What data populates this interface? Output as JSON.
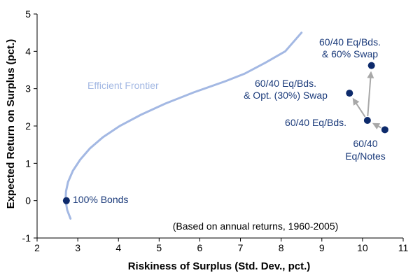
{
  "chart_data": {
    "type": "scatter",
    "xlabel": "Riskiness of Surplus (Std. Dev., pct.)",
    "ylabel": "Expected Return on Surplus (pct.)",
    "xlim": [
      2,
      11
    ],
    "ylim": [
      -1,
      5
    ],
    "xticks": [
      "2",
      "3",
      "4",
      "5",
      "6",
      "7",
      "8",
      "9",
      "10",
      "11"
    ],
    "yticks": [
      "-1",
      "0",
      "1",
      "2",
      "3",
      "4",
      "5"
    ],
    "grid": false,
    "frontier": {
      "label": "Efficient Frontier",
      "color": "#a3b8e3",
      "points": [
        [
          2.82,
          -0.48
        ],
        [
          2.74,
          -0.25
        ],
        [
          2.7,
          0.0
        ],
        [
          2.71,
          0.25
        ],
        [
          2.76,
          0.5
        ],
        [
          2.88,
          0.8
        ],
        [
          3.06,
          1.1
        ],
        [
          3.3,
          1.4
        ],
        [
          3.62,
          1.7
        ],
        [
          4.03,
          2.0
        ],
        [
          4.55,
          2.3
        ],
        [
          5.15,
          2.6
        ],
        [
          5.85,
          2.9
        ],
        [
          6.63,
          3.2
        ],
        [
          7.1,
          3.4
        ],
        [
          7.62,
          3.7
        ],
        [
          8.1,
          4.0
        ],
        [
          8.5,
          4.5
        ]
      ]
    },
    "points": [
      {
        "label": "100% Bonds",
        "x": 2.72,
        "y": 0.0
      },
      {
        "label": "60/40 Eq/Notes",
        "x": 10.55,
        "y": 1.9
      },
      {
        "label": "60/40 Eq/Bds.",
        "x": 10.12,
        "y": 2.15
      },
      {
        "label": "60/40 Eq/Bds. & Opt. (30%) Swap",
        "x": 9.68,
        "y": 2.88
      },
      {
        "label": "60/40 Eq/Bds. & 60% Swap",
        "x": 10.22,
        "y": 3.62
      }
    ],
    "arrows": [
      {
        "from": "60/40 Eq/Notes",
        "to": "60/40 Eq/Bds."
      },
      {
        "from": "60/40 Eq/Bds.",
        "to": "60/40 Eq/Bds. & Opt. (30%) Swap"
      },
      {
        "from": "60/40 Eq/Bds.",
        "to": "60/40 Eq/Bds. & 60% Swap"
      }
    ],
    "annotation": "(Based on annual returns, 1960-2005)",
    "colors": {
      "point": "#0d2a6b",
      "label": "#1a3a7a",
      "arrow": "#a8a8a8",
      "axis": "#000000"
    }
  },
  "labels": {
    "bonds": "100% Bonds",
    "notes_line1": "60/40",
    "notes_line2": "Eq/Notes",
    "eqbds": "60/40 Eq/Bds.",
    "opt_line1": "60/40 Eq/Bds.",
    "opt_line2": "& Opt. (30%) Swap",
    "swap_line1": "60/40 Eq/Bds.",
    "swap_line2": "& 60% Swap"
  }
}
